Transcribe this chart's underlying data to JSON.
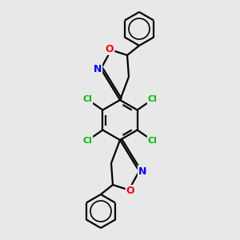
{
  "bg_color": "#e8e8e8",
  "bond_color": "#000000",
  "bond_width": 1.6,
  "cl_color": "#00bb00",
  "n_color": "#0000ff",
  "o_color": "#ff0000",
  "figsize": [
    3.0,
    3.0
  ],
  "dpi": 100,
  "xlim": [
    -1.8,
    1.8
  ],
  "ylim": [
    -3.0,
    3.0
  ]
}
